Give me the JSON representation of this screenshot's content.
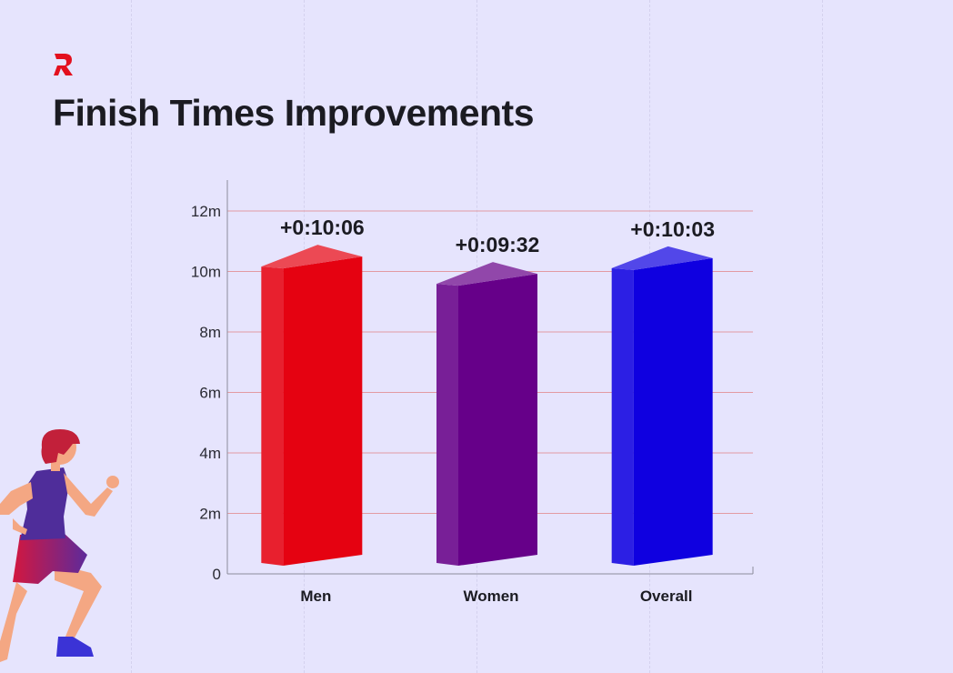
{
  "title": "Finish Times Improvements",
  "logo_icon": "r-brand-logo-icon",
  "runner_icon": "runner-illustration",
  "colors": {
    "background": "#e6e4fd",
    "gridline": "#e39aa2",
    "axis": "#8c8c9a",
    "text": "#1b1b22"
  },
  "chart_data": {
    "type": "bar",
    "title": "",
    "xlabel": "",
    "ylabel": "",
    "categories": [
      "Men",
      "Women",
      "Overall"
    ],
    "values": [
      10.1,
      9.53,
      10.05
    ],
    "value_labels": [
      "+0:10:06",
      "+0:09:32",
      "+0:10:03"
    ],
    "bar_colors": [
      "#e50211",
      "#660089",
      "#0f00e0"
    ],
    "ylim": [
      0,
      12
    ],
    "yticks": [
      0,
      2,
      4,
      6,
      8,
      10,
      12
    ],
    "ytick_labels": [
      "0",
      "2m",
      "4m",
      "6m",
      "8m",
      "10m",
      "12m"
    ],
    "grid": true,
    "style": "3d"
  }
}
